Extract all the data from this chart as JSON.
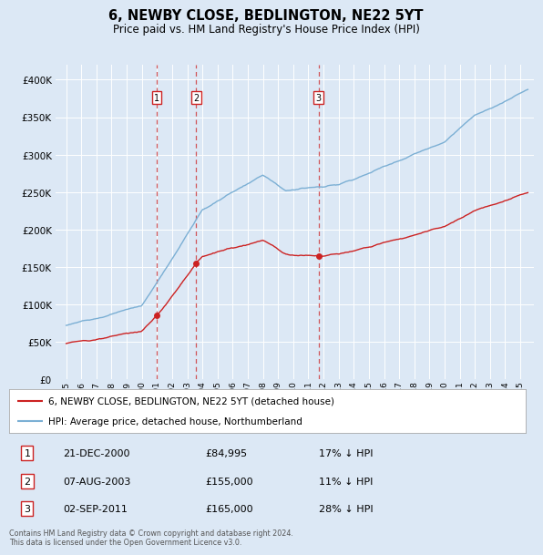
{
  "title": "6, NEWBY CLOSE, BEDLINGTON, NE22 5YT",
  "subtitle": "Price paid vs. HM Land Registry's House Price Index (HPI)",
  "bg_color": "#dce8f5",
  "plot_bg_color": "#dce8f5",
  "grid_color": "#ffffff",
  "hpi_color": "#7bafd4",
  "price_color": "#cc2222",
  "marker_color": "#cc2222",
  "sale_year_nums": [
    2000.97,
    2003.59,
    2011.67
  ],
  "sale_prices": [
    84995,
    155000,
    165000
  ],
  "sale_labels": [
    "1",
    "2",
    "3"
  ],
  "legend_line1": "6, NEWBY CLOSE, BEDLINGTON, NE22 5YT (detached house)",
  "legend_line2": "HPI: Average price, detached house, Northumberland",
  "table_data": [
    [
      "1",
      "21-DEC-2000",
      "£84,995",
      "17% ↓ HPI"
    ],
    [
      "2",
      "07-AUG-2003",
      "£155,000",
      "11% ↓ HPI"
    ],
    [
      "3",
      "02-SEP-2011",
      "£165,000",
      "28% ↓ HPI"
    ]
  ],
  "footer": "Contains HM Land Registry data © Crown copyright and database right 2024.\nThis data is licensed under the Open Government Licence v3.0.",
  "ylim": [
    0,
    420000
  ],
  "yticks": [
    0,
    50000,
    100000,
    150000,
    200000,
    250000,
    300000,
    350000,
    400000
  ],
  "xlim": [
    1994.3,
    2025.9
  ]
}
